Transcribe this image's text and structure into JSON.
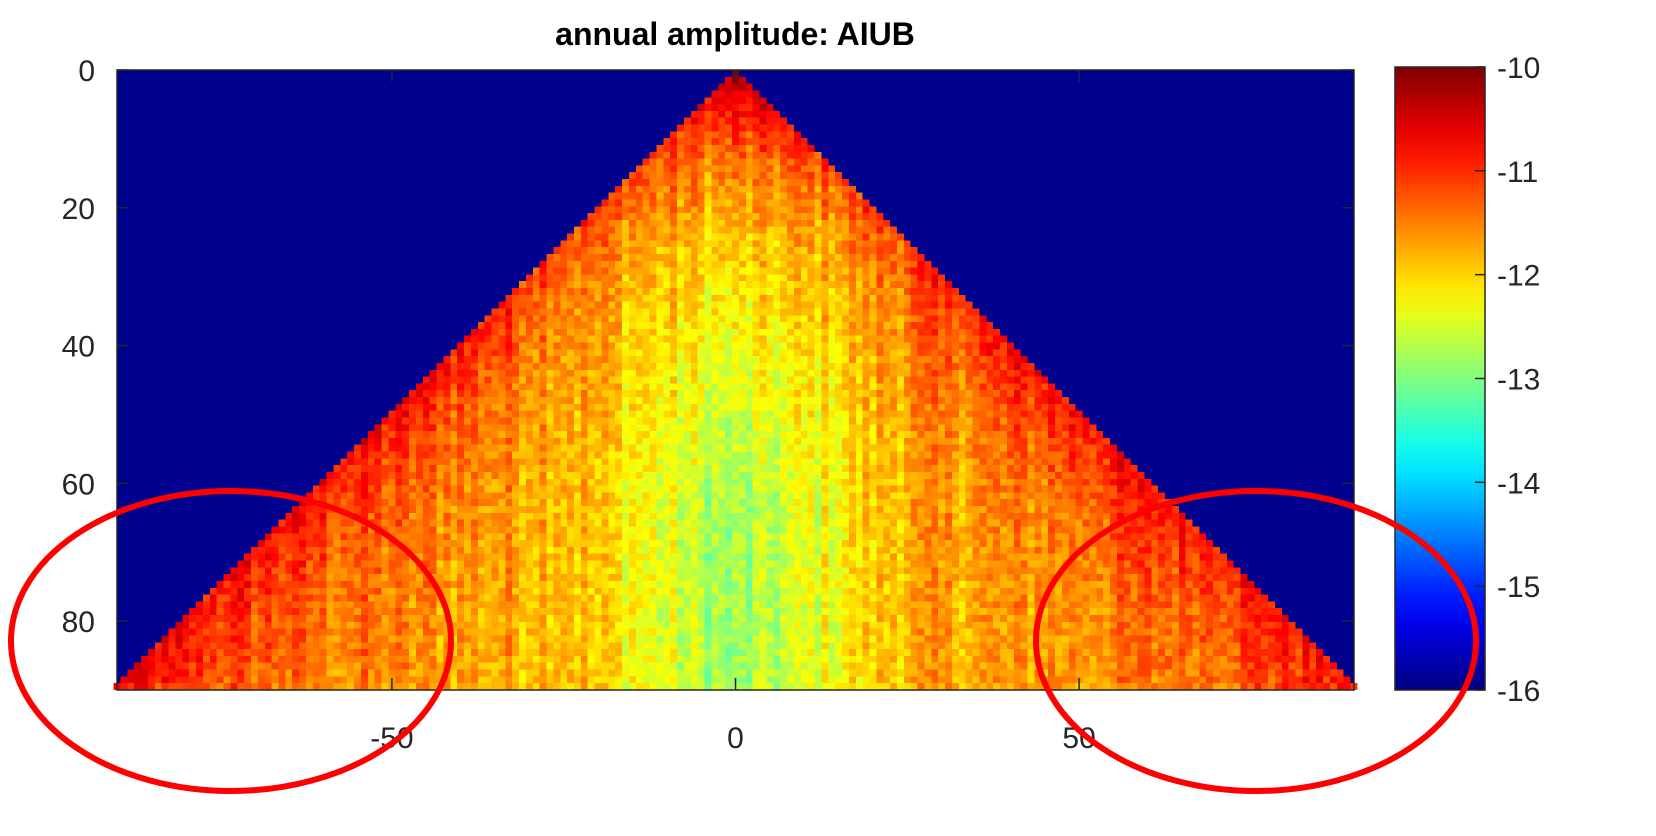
{
  "chart_data": {
    "type": "heatmap",
    "title": "annual amplitude: AIUB",
    "xlabel": "",
    "ylabel": "",
    "x_range": [
      -90,
      90
    ],
    "y_range": [
      0,
      90
    ],
    "y_axis_direction": "top-to-bottom",
    "x_ticks": [
      -50,
      0,
      50
    ],
    "y_ticks": [
      0,
      20,
      40,
      60,
      80
    ],
    "color_range": [
      -16,
      -10
    ],
    "colorbar_ticks": [
      -10,
      -11,
      -12,
      -13,
      -14,
      -15,
      -16
    ],
    "colormap": "jet",
    "background_value": -16,
    "grid": false,
    "shape": "triangle: cells filled where |x| <= y, apex at x=0, y=0",
    "value_trend": {
      "apex_x0_y0": -10.3,
      "edges_high_y": -10.8,
      "center_x0_y65": -12.9,
      "mid_region": -11.8
    },
    "annotations": [
      {
        "type": "ellipse",
        "color": "#ff0000",
        "region": "bottom-left"
      },
      {
        "type": "ellipse",
        "color": "#ff0000",
        "region": "bottom-right"
      }
    ]
  },
  "colors": {
    "background_cell": "#00008f",
    "annotation": "#ff0000",
    "axis": "#262626"
  }
}
